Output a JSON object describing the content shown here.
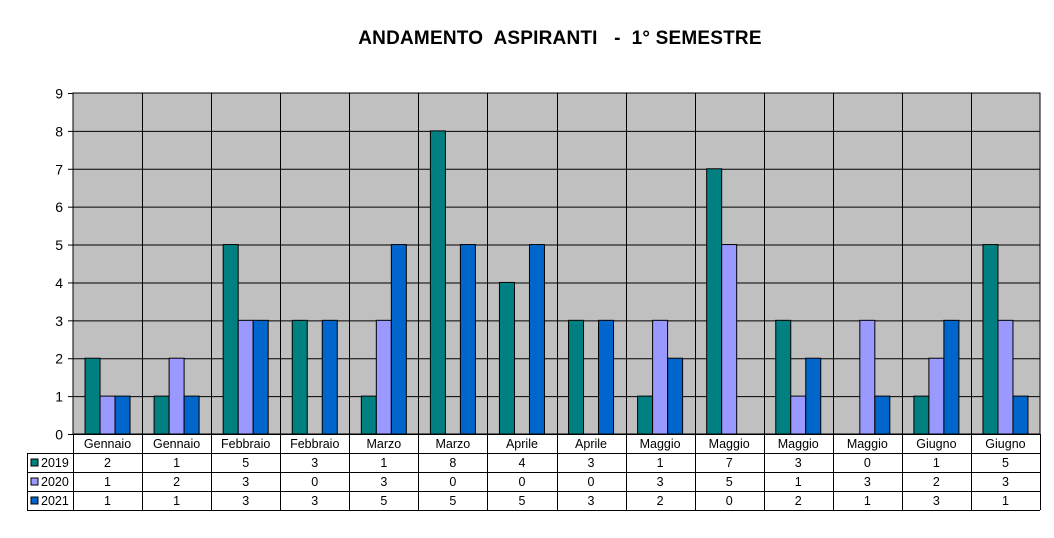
{
  "chart_data": {
    "type": "bar",
    "title": "ANDAMENTO  ASPIRANTI   -  1° SEMESTRE",
    "categories": [
      "Gennaio",
      "Gennaio",
      "Febbraio",
      "Febbraio",
      "Marzo",
      "Marzo",
      "Aprile",
      "Aprile",
      "Maggio",
      "Maggio",
      "Maggio",
      "Maggio",
      "Giugno",
      "Giugno"
    ],
    "series": [
      {
        "name": "2019",
        "color": "#008080",
        "values": [
          2,
          1,
          5,
          3,
          1,
          8,
          4,
          3,
          1,
          7,
          3,
          0,
          1,
          5
        ]
      },
      {
        "name": "2020",
        "color": "#9999ff",
        "values": [
          1,
          2,
          3,
          0,
          3,
          0,
          0,
          0,
          3,
          5,
          1,
          3,
          2,
          3
        ]
      },
      {
        "name": "2021",
        "color": "#0066cc",
        "values": [
          1,
          1,
          3,
          3,
          5,
          5,
          5,
          3,
          2,
          0,
          2,
          1,
          3,
          1
        ]
      }
    ],
    "ylim": [
      0,
      9
    ],
    "yticks": [
      "0",
      "1",
      "2",
      "3",
      "4",
      "5",
      "6",
      "7",
      "8",
      "9"
    ],
    "plot_background": "#c0c0c0",
    "grid": true,
    "legend": "data-table-left"
  }
}
